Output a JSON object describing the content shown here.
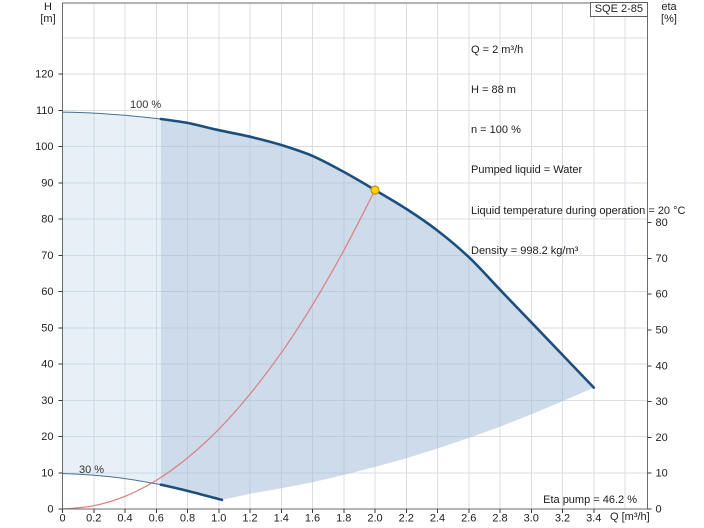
{
  "pump_model": "SQE 2-85",
  "axes": {
    "left_title": "H",
    "left_unit": "[m]",
    "right_title": "eta",
    "right_unit": "[%]",
    "x_title": "Q [m³/h]"
  },
  "info_box": {
    "lines": [
      "Q = 2 m³/h",
      "H = 88 m",
      "n = 100 %",
      "Pumped liquid = Water",
      "Liquid temperature during operation = 20 °C",
      "Density = 998.2 kg/m³"
    ]
  },
  "annotations": {
    "eta_pump": "Eta pump = 46.2 %",
    "curve_100": "100 %",
    "curve_30": "30 %"
  },
  "chart_data": {
    "type": "line",
    "title": "SQE 2-85 pump performance curve",
    "xlabel": "Q [m³/h]",
    "ylabel_left": "H [m]",
    "ylabel_right": "eta [%]",
    "x_axis": {
      "tick_values": [
        0,
        0.2,
        0.4,
        0.6,
        0.8,
        1.0,
        1.2,
        1.4,
        1.6,
        1.8,
        2.0,
        2.2,
        2.4,
        2.6,
        2.8,
        3.0,
        3.2,
        3.4
      ],
      "tick_labels": [
        "0",
        "0.2",
        "0.4",
        "0.6",
        "0.8",
        "1.0",
        "1.2",
        "1.4",
        "1.6",
        "1.8",
        "2.0",
        "2.2",
        "2.4",
        "2.6",
        "2.8",
        "3.0",
        "3.2",
        "3.4"
      ],
      "gridline_values": [
        0.2,
        0.4,
        0.6,
        0.8,
        1.0,
        1.2,
        1.4,
        1.6,
        1.8,
        2.0,
        2.2,
        2.4,
        2.6,
        2.8,
        3.0,
        3.2,
        3.4,
        3.6
      ]
    },
    "y_left_axis": {
      "tick_values": [
        0,
        10,
        20,
        30,
        40,
        50,
        60,
        70,
        80,
        90,
        100,
        110,
        120
      ],
      "tick_labels": [
        "0",
        "10",
        "20",
        "30",
        "40",
        "50",
        "60",
        "70",
        "80",
        "90",
        "100",
        "110",
        "120"
      ],
      "gridline_values": [
        10,
        20,
        30,
        40,
        50,
        60,
        70,
        80,
        90,
        100,
        110,
        120,
        130
      ]
    },
    "y_right_axis": {
      "tick_values": [
        0,
        10,
        20,
        30,
        40,
        50,
        60,
        70,
        80
      ],
      "tick_labels": [
        "0",
        "10",
        "20",
        "30",
        "40",
        "50",
        "60",
        "70",
        "80"
      ]
    },
    "regions": [
      {
        "name": "low-flow-region",
        "fill": "rgba(186,209,233,0.35)",
        "points": [
          [
            0,
            109.5
          ],
          [
            0.2,
            109.2
          ],
          [
            0.4,
            108.6
          ],
          [
            0.63,
            107.6
          ],
          [
            0.63,
            6.7
          ],
          [
            0.4,
            8.4
          ],
          [
            0.2,
            9.3
          ],
          [
            0,
            9.8
          ]
        ]
      },
      {
        "name": "speed-control-operating-envelope",
        "fill": "rgba(164,190,219,0.55)",
        "points": [
          [
            0.63,
            107.6
          ],
          [
            0.8,
            106.5
          ],
          [
            1.0,
            104.5
          ],
          [
            1.2,
            102.7
          ],
          [
            1.4,
            100.4
          ],
          [
            1.6,
            97.4
          ],
          [
            1.8,
            93.0
          ],
          [
            2.0,
            88.0
          ],
          [
            2.2,
            82.8
          ],
          [
            2.4,
            76.8
          ],
          [
            2.6,
            69.5
          ],
          [
            2.8,
            60.5
          ],
          [
            3.0,
            51.5
          ],
          [
            3.2,
            42.5
          ],
          [
            3.4,
            33.5
          ],
          [
            3.2,
            29.7
          ],
          [
            3.0,
            26.1
          ],
          [
            2.8,
            22.7
          ],
          [
            2.6,
            19.6
          ],
          [
            2.4,
            16.7
          ],
          [
            2.2,
            14.0
          ],
          [
            2.0,
            11.6
          ],
          [
            1.8,
            9.4
          ],
          [
            1.6,
            7.4
          ],
          [
            1.4,
            5.7
          ],
          [
            1.2,
            4.2
          ],
          [
            1.02,
            2.5
          ],
          [
            0.8,
            5.0
          ],
          [
            0.63,
            6.7
          ]
        ]
      }
    ],
    "series": [
      {
        "name": "system-curve-to-duty-point",
        "color": "#dc7f7f",
        "width": 1.2,
        "points": [
          [
            0,
            0
          ],
          [
            0.2,
            0.9
          ],
          [
            0.4,
            3.5
          ],
          [
            0.6,
            7.9
          ],
          [
            0.8,
            14.1
          ],
          [
            1.0,
            22.0
          ],
          [
            1.2,
            31.7
          ],
          [
            1.4,
            43.1
          ],
          [
            1.6,
            56.3
          ],
          [
            1.8,
            71.3
          ],
          [
            2.0,
            88.0
          ]
        ]
      },
      {
        "name": "pump-curve-100pct-low-flow-thin",
        "color": "#4d6f90",
        "width": 1,
        "points": [
          [
            0,
            109.5
          ],
          [
            0.2,
            109.2
          ],
          [
            0.4,
            108.6
          ],
          [
            0.63,
            107.6
          ]
        ]
      },
      {
        "name": "pump-curve-30pct-low-flow-thin",
        "color": "#4d6f90",
        "width": 1,
        "points": [
          [
            0,
            9.8
          ],
          [
            0.2,
            9.3
          ],
          [
            0.4,
            8.4
          ],
          [
            0.63,
            6.7
          ]
        ]
      },
      {
        "name": "pump-curve-100pct-speed",
        "color": "#1d4f7d",
        "width": 2.6,
        "points": [
          [
            0.63,
            107.6
          ],
          [
            0.8,
            106.5
          ],
          [
            1.0,
            104.5
          ],
          [
            1.2,
            102.7
          ],
          [
            1.4,
            100.4
          ],
          [
            1.6,
            97.4
          ],
          [
            1.8,
            93.0
          ],
          [
            2.0,
            88.0
          ],
          [
            2.2,
            82.8
          ],
          [
            2.4,
            76.8
          ],
          [
            2.6,
            69.5
          ],
          [
            2.8,
            60.5
          ],
          [
            3.0,
            51.5
          ],
          [
            3.2,
            42.5
          ],
          [
            3.4,
            33.5
          ]
        ]
      },
      {
        "name": "pump-curve-30pct-speed",
        "color": "#1d4f7d",
        "width": 2.6,
        "points": [
          [
            0.63,
            6.7
          ],
          [
            0.8,
            5.0
          ],
          [
            1.02,
            2.5
          ]
        ]
      }
    ],
    "duty_point": {
      "q": 2.0,
      "h": 88.0,
      "fill": "#ffd400",
      "stroke": "#d29000"
    },
    "colors": {
      "grid": "#d9dee4",
      "plot_border": "#6a6a6a",
      "tick": "#3a3a3a",
      "tick_text": "#222222"
    },
    "legend": "none",
    "grid": "on"
  }
}
